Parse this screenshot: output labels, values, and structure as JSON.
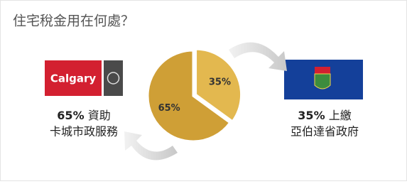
{
  "chart_data": {
    "type": "pie",
    "title": "住宅稅金用在何處？",
    "values": [
      35,
      65
    ],
    "value_labels": [
      "35%",
      "65%"
    ],
    "categories": [
      "上繳",
      "資助"
    ],
    "descriptions": [
      "亞伯達省政府",
      "卡城市政服務"
    ],
    "colors": [
      "#e3b84f",
      "#cf9f36"
    ],
    "logo": "Calgary"
  }
}
